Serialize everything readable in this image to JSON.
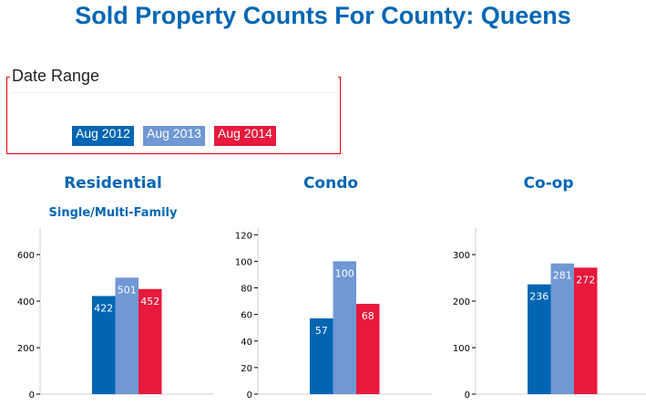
{
  "title": "Sold Property Counts For County: Queens",
  "date_range": {
    "label": "Date Range",
    "buttons": [
      {
        "label": "Aug 2012",
        "color": "#0066b3"
      },
      {
        "label": "Aug 2013",
        "color": "#6f98d4"
      },
      {
        "label": "Aug 2014",
        "color": "#e8193c"
      }
    ]
  },
  "chart_data": [
    {
      "type": "bar",
      "title": "Residential",
      "subtitle": "Single/Multi-Family",
      "categories": [
        "Aug 2012",
        "Aug 2013",
        "Aug 2014"
      ],
      "values": [
        422,
        501,
        452
      ],
      "ylim": [
        0,
        714
      ],
      "yticks": [
        0,
        200,
        400,
        600
      ],
      "grid": false
    },
    {
      "type": "bar",
      "title": "Condo",
      "subtitle": "",
      "categories": [
        "Aug 2012",
        "Aug 2013",
        "Aug 2014"
      ],
      "values": [
        57,
        100,
        68
      ],
      "ylim": [
        0,
        125
      ],
      "yticks": [
        0,
        20,
        40,
        60,
        80,
        100,
        120
      ],
      "grid": false
    },
    {
      "type": "bar",
      "title": "Co-op",
      "subtitle": "",
      "categories": [
        "Aug 2012",
        "Aug 2013",
        "Aug 2014"
      ],
      "values": [
        236,
        281,
        272
      ],
      "ylim": [
        0,
        357
      ],
      "yticks": [
        0,
        100,
        200,
        300
      ],
      "grid": false
    }
  ]
}
